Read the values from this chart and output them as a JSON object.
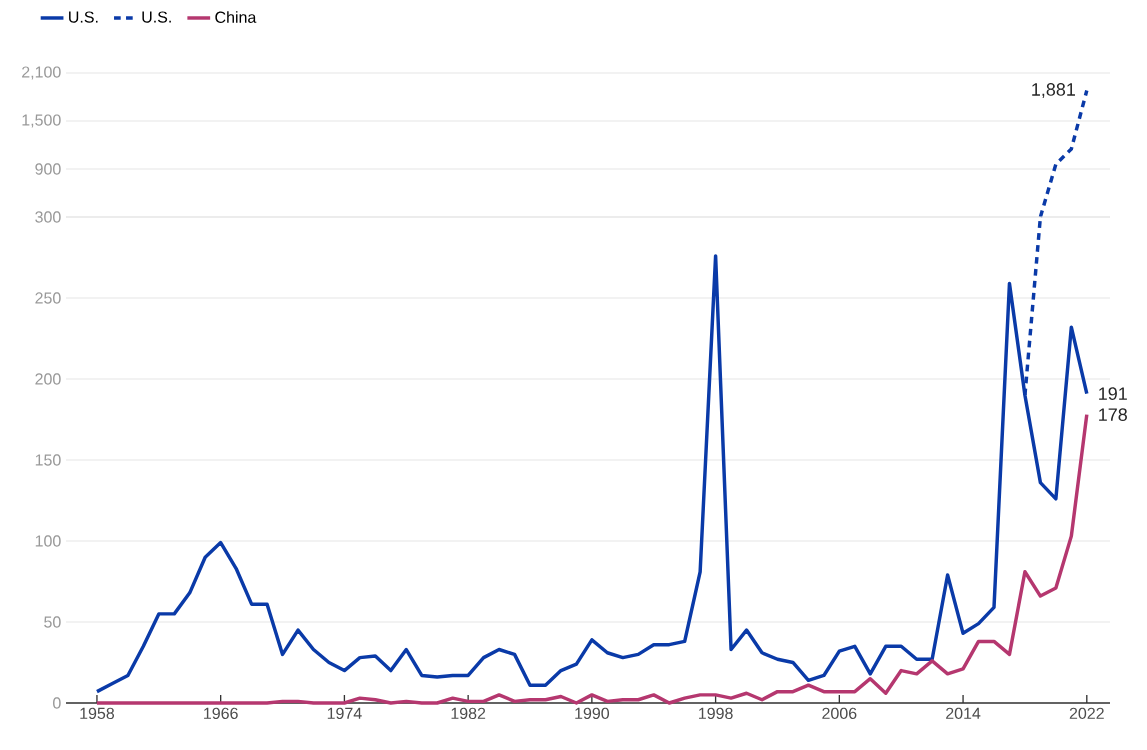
{
  "chart_data": [
    {
      "type": "line",
      "xlim": [
        1956,
        2023.5
      ],
      "ylim": [
        300,
        2100
      ],
      "yticks": [
        {
          "value": 300,
          "label": null
        },
        900,
        {
          "value": 1500,
          "label": "1,500"
        },
        {
          "value": 2100,
          "label": "2,100"
        }
      ],
      "grid": "y",
      "tick_labels": "y",
      "series": [
        {
          "color": "#0a3aa8",
          "line_style": "dashed",
          "x": [
            2019,
            2020,
            2021,
            2022
          ],
          "values": [
            300,
            960,
            1150,
            1881
          ],
          "value_labels": [
            null,
            null,
            null,
            "1,881"
          ]
        }
      ]
    },
    {
      "type": "line",
      "xlim": [
        1956,
        2023.5
      ],
      "ylim": [
        0,
        300
      ],
      "yticks": [
        0,
        50,
        100,
        150,
        200,
        250,
        300
      ],
      "xticks": [
        1958,
        1966,
        1974,
        1982,
        1990,
        1998,
        2006,
        2014,
        2022
      ],
      "grid": "y",
      "legend": "top left",
      "x": [
        1958,
        1959,
        1960,
        1961,
        1962,
        1963,
        1964,
        1965,
        1966,
        1967,
        1968,
        1969,
        1970,
        1971,
        1972,
        1973,
        1974,
        1975,
        1976,
        1977,
        1978,
        1979,
        1980,
        1981,
        1982,
        1983,
        1984,
        1985,
        1986,
        1987,
        1988,
        1989,
        1990,
        1991,
        1992,
        1993,
        1994,
        1995,
        1996,
        1997,
        1998,
        1999,
        2000,
        2001,
        2002,
        2003,
        2004,
        2005,
        2006,
        2007,
        2008,
        2009,
        2010,
        2011,
        2012,
        2013,
        2014,
        2015,
        2016,
        2017,
        2018,
        2019,
        2020,
        2021,
        2022
      ],
      "series": [
        {
          "name": "U.S.",
          "color": "#0a3aa8",
          "line_style": "solid",
          "values": [
            7,
            12,
            17,
            35,
            55,
            55,
            68,
            90,
            99,
            83,
            61,
            61,
            30,
            45,
            33,
            25,
            20,
            28,
            29,
            20,
            33,
            17,
            16,
            17,
            17,
            28,
            33,
            30,
            11,
            11,
            20,
            24,
            39,
            31,
            28,
            30,
            36,
            36,
            38,
            81,
            276,
            33,
            45,
            31,
            27,
            25,
            14,
            17,
            32,
            35,
            18,
            35,
            35,
            27,
            27,
            79,
            43,
            49,
            59,
            259,
            190,
            136,
            126,
            232,
            191
          ],
          "value_labels": [
            null,
            null,
            null,
            null,
            null,
            null,
            null,
            null,
            null,
            null,
            null,
            null,
            null,
            null,
            null,
            null,
            null,
            null,
            null,
            null,
            null,
            null,
            null,
            null,
            null,
            null,
            null,
            null,
            null,
            null,
            null,
            null,
            null,
            null,
            null,
            null,
            null,
            null,
            null,
            null,
            null,
            null,
            null,
            null,
            null,
            null,
            null,
            null,
            null,
            null,
            null,
            null,
            null,
            null,
            null,
            null,
            null,
            null,
            null,
            null,
            null,
            null,
            null,
            null,
            "191"
          ]
        },
        {
          "name": "U.S.",
          "color": "#0a3aa8",
          "line_style": "dashed",
          "x": [
            2018,
            2019
          ],
          "values": [
            190,
            300
          ]
        },
        {
          "name": "China",
          "color": "#b5376f",
          "line_style": "solid",
          "values": [
            0,
            0,
            0,
            0,
            0,
            0,
            0,
            0,
            0,
            0,
            0,
            0,
            1,
            1,
            0,
            0,
            0,
            3,
            2,
            0,
            1,
            0,
            0,
            3,
            1,
            1,
            5,
            1,
            2,
            2,
            4,
            0,
            5,
            1,
            2,
            2,
            5,
            0,
            3,
            5,
            5,
            3,
            6,
            2,
            7,
            7,
            11,
            7,
            7,
            7,
            15,
            6,
            20,
            18,
            26,
            18,
            21,
            38,
            38,
            30,
            81,
            66,
            71,
            103,
            178
          ],
          "value_labels": [
            null,
            null,
            null,
            null,
            null,
            null,
            null,
            null,
            null,
            null,
            null,
            null,
            null,
            null,
            null,
            null,
            null,
            null,
            null,
            null,
            null,
            null,
            null,
            null,
            null,
            null,
            null,
            null,
            null,
            null,
            null,
            null,
            null,
            null,
            null,
            null,
            null,
            null,
            null,
            null,
            null,
            null,
            null,
            null,
            null,
            null,
            null,
            null,
            null,
            null,
            null,
            null,
            null,
            null,
            null,
            null,
            null,
            null,
            null,
            null,
            null,
            null,
            null,
            null,
            "178"
          ]
        }
      ]
    }
  ]
}
